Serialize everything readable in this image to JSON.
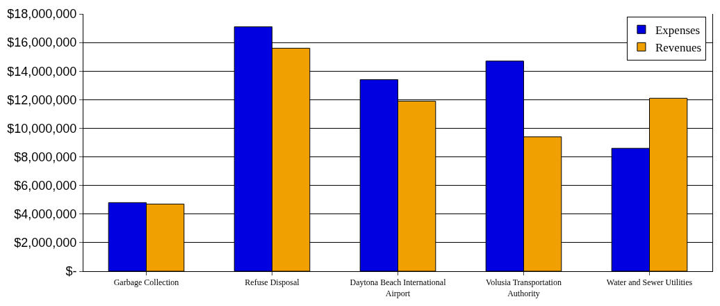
{
  "chart_data": {
    "type": "bar",
    "categories": [
      "Garbage Collection",
      "Refuse Disposal",
      "Daytona Beach International Airport",
      "Volusia Transportation Authority",
      "Water and Sewer Utilities"
    ],
    "series": [
      {
        "name": "Expenses",
        "color": "#0000e0",
        "values": [
          4800000,
          17100000,
          13400000,
          14700000,
          8600000
        ]
      },
      {
        "name": "Revenues",
        "color": "#f0a000",
        "values": [
          4700000,
          15600000,
          11900000,
          9400000,
          12100000
        ]
      }
    ],
    "ylim": [
      0,
      18000000
    ],
    "yticks": [
      {
        "value": 0,
        "label": "$-"
      },
      {
        "value": 2000000,
        "label": "$2,000,000"
      },
      {
        "value": 4000000,
        "label": "$4,000,000"
      },
      {
        "value": 6000000,
        "label": "$6,000,000"
      },
      {
        "value": 8000000,
        "label": "$8,000,000"
      },
      {
        "value": 10000000,
        "label": "$10,000,000"
      },
      {
        "value": 12000000,
        "label": "$12,000,000"
      },
      {
        "value": 14000000,
        "label": "$14,000,000"
      },
      {
        "value": 16000000,
        "label": "$16,000,000"
      },
      {
        "value": 18000000,
        "label": "$18,000,000"
      }
    ],
    "grid": "y",
    "legend": "top right"
  }
}
